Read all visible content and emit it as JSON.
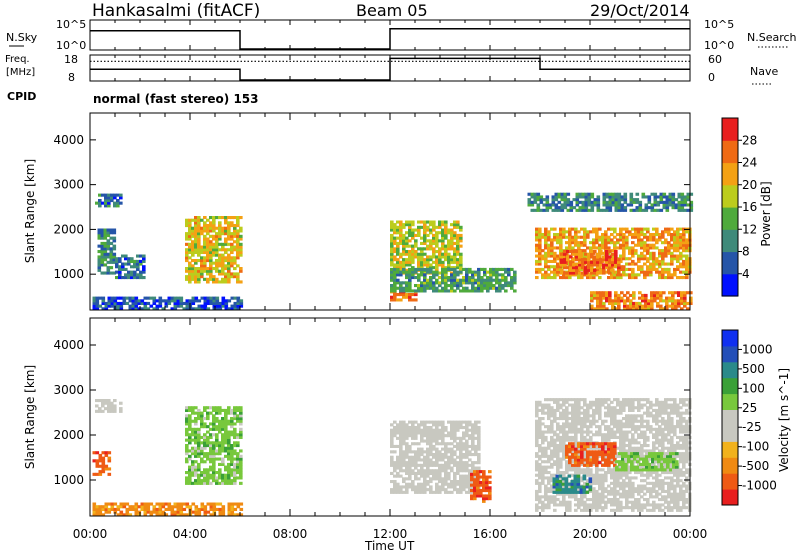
{
  "header": {
    "station": "Hankasalmi (fitACF)",
    "beam": "Beam 05",
    "date": "29/Oct/2014"
  },
  "strip_labels": {
    "nsky": "N.Sky",
    "nsky_ticks": [
      "10^5",
      "10^0"
    ],
    "nsearch": "N.Search",
    "nsearch_ticks": [
      "10^5",
      "10^0"
    ],
    "freq_label_1": "Freq.",
    "freq_label_2": "[MHz]",
    "freq_ticks": [
      "18",
      "8"
    ],
    "nave": "Nave",
    "nave_ticks": [
      "60",
      "0"
    ],
    "cpid": "CPID",
    "cpid_text": "normal (fast stereo) 153"
  },
  "colors": {
    "power_scale": [
      "#0010ff",
      "#2555a8",
      "#3f8a7a",
      "#4faa3c",
      "#bccc1d",
      "#f4a114",
      "#ef6a14",
      "#e81f1f"
    ],
    "velocity_scale": [
      "#e81f1f",
      "#ef5a14",
      "#f08a12",
      "#f2b21c",
      "#c8c8c0",
      "#c8c8c0",
      "#78c83c",
      "#3aa037",
      "#2a8a8a",
      "#244fb8",
      "#1030f0"
    ]
  },
  "chart_data": [
    {
      "type": "heatmap",
      "panel": "power",
      "xlabel": "",
      "ylabel": "Slant Range [km]",
      "yticks": [
        "1000",
        "2000",
        "3000",
        "4000"
      ],
      "ylim": [
        200,
        4600
      ],
      "xlim": [
        0,
        24
      ],
      "data_gaps_hours": [
        [
          6,
          12
        ]
      ],
      "colorbar": {
        "label": "Power [dB]",
        "ticks": [
          "4",
          "8",
          "12",
          "16",
          "20",
          "24",
          "28"
        ],
        "range": [
          0,
          30
        ]
      },
      "regions": [
        {
          "x": [
            0.2,
            1.2
          ],
          "y": [
            2500,
            2800
          ],
          "value": 10
        },
        {
          "x": [
            0.1,
            6.0
          ],
          "y": [
            200,
            500
          ],
          "value": 8
        },
        {
          "x": [
            0.3,
            1.0
          ],
          "y": [
            1000,
            2000
          ],
          "value": 12
        },
        {
          "x": [
            1.0,
            2.2
          ],
          "y": [
            900,
            1400
          ],
          "value": 10
        },
        {
          "x": [
            3.8,
            6.0
          ],
          "y": [
            800,
            2300
          ],
          "value": 22
        },
        {
          "x": [
            12.0,
            14.8
          ],
          "y": [
            1000,
            2200
          ],
          "value": 20
        },
        {
          "x": [
            12.0,
            13.0
          ],
          "y": [
            400,
            600
          ],
          "value": 28
        },
        {
          "x": [
            12.0,
            17.0
          ],
          "y": [
            600,
            1100
          ],
          "value": 14
        },
        {
          "x": [
            17.8,
            24.0
          ],
          "y": [
            900,
            2000
          ],
          "value": 24
        },
        {
          "x": [
            18.8,
            21.2
          ],
          "y": [
            1000,
            1500
          ],
          "value": 28
        },
        {
          "x": [
            20.0,
            24.0
          ],
          "y": [
            200,
            600
          ],
          "value": 26
        },
        {
          "x": [
            17.5,
            24.0
          ],
          "y": [
            2400,
            2800
          ],
          "value": 12
        }
      ]
    },
    {
      "type": "heatmap",
      "panel": "velocity",
      "xlabel": "Time UT",
      "ylabel": "Slant Range [km]",
      "xticks": [
        "00:00",
        "04:00",
        "08:00",
        "12:00",
        "16:00",
        "20:00",
        "00:00"
      ],
      "yticks": [
        "1000",
        "2000",
        "3000",
        "4000"
      ],
      "ylim": [
        200,
        4600
      ],
      "xlim": [
        0,
        24
      ],
      "data_gaps_hours": [
        [
          6,
          12
        ]
      ],
      "colorbar": {
        "label": "Velocity [m s^-1]",
        "ticks": [
          "-1000",
          "-500",
          "-100",
          "-25",
          "25",
          "100",
          "500",
          "1000"
        ],
        "range": [
          -1000,
          1000
        ]
      },
      "regions": [
        {
          "x": [
            0.2,
            1.2
          ],
          "y": [
            2500,
            2800
          ],
          "value": 0
        },
        {
          "x": [
            0.1,
            0.8
          ],
          "y": [
            1100,
            1600
          ],
          "value": -500
        },
        {
          "x": [
            0.1,
            6.0
          ],
          "y": [
            200,
            500
          ],
          "value": -100
        },
        {
          "x": [
            3.8,
            6.0
          ],
          "y": [
            900,
            2600
          ],
          "value": 150
        },
        {
          "x": [
            12.0,
            15.5
          ],
          "y": [
            700,
            2300
          ],
          "value": 0
        },
        {
          "x": [
            15.2,
            16.0
          ],
          "y": [
            500,
            1200
          ],
          "value": -500
        },
        {
          "x": [
            17.8,
            24.0
          ],
          "y": [
            300,
            2800
          ],
          "value": 0
        },
        {
          "x": [
            19.0,
            21.0
          ],
          "y": [
            1300,
            1800
          ],
          "value": -500
        },
        {
          "x": [
            21.0,
            23.5
          ],
          "y": [
            1200,
            1600
          ],
          "value": 150
        },
        {
          "x": [
            18.5,
            20.0
          ],
          "y": [
            700,
            1100
          ],
          "value": 500
        }
      ]
    },
    {
      "type": "line",
      "panel": "nsky_nsearch",
      "xlim": [
        0,
        24
      ],
      "series": [
        {
          "x": [
            0,
            6,
            6,
            12,
            12,
            24
          ],
          "y": [
            0.65,
            0.65,
            0,
            0,
            0.72,
            0.72
          ]
        }
      ]
    },
    {
      "type": "line",
      "panel": "freq_nave",
      "xlim": [
        0,
        24
      ],
      "series": [
        {
          "x": [
            0,
            6,
            6,
            12,
            12,
            18,
            18,
            24
          ],
          "y": [
            0.45,
            0.45,
            0,
            0,
            0.9,
            0.9,
            0.45,
            0.45
          ]
        },
        {
          "x": [
            0,
            24
          ],
          "y": [
            0.78,
            0.78
          ]
        }
      ]
    }
  ]
}
